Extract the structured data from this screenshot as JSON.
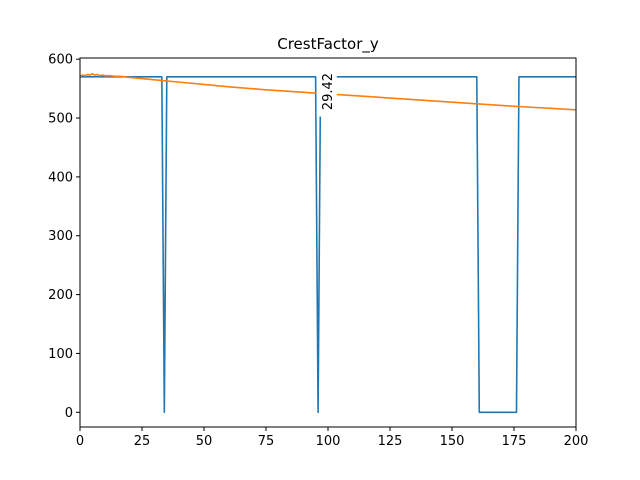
{
  "chart_data": {
    "type": "line",
    "title": "CrestFactor_y",
    "xlabel": "",
    "ylabel": "",
    "xlim": [
      0,
      200
    ],
    "ylim": [
      -25,
      602
    ],
    "xticks": [
      0,
      25,
      50,
      75,
      100,
      125,
      150,
      175,
      200
    ],
    "yticks": [
      0,
      100,
      200,
      300,
      400,
      500,
      600
    ],
    "grid": false,
    "legend": "none",
    "series": [
      {
        "color": "#1f77b4",
        "x": [
          0,
          33,
          34,
          35,
          95,
          96,
          97,
          160,
          161,
          176,
          177,
          200
        ],
        "y": [
          570,
          570,
          0,
          570,
          570,
          0,
          570,
          570,
          0,
          0,
          570,
          570
        ]
      },
      {
        "color": "#ff7f0e",
        "x": [
          0,
          1,
          2,
          3,
          4,
          5,
          6,
          7,
          8,
          9,
          10,
          12,
          14,
          16,
          18,
          20,
          25,
          30,
          40,
          50,
          60,
          75,
          100,
          125,
          150,
          175,
          200
        ],
        "y": [
          571,
          573,
          572,
          574,
          573,
          575,
          573,
          574,
          572,
          573,
          572,
          572,
          571,
          571,
          570,
          569,
          567,
          565,
          561,
          557,
          553,
          548,
          541,
          534,
          527,
          520,
          514
        ]
      }
    ],
    "annotations": [
      {
        "text": "29.42",
        "x": 99.5,
        "y": 545,
        "rotation": 90
      }
    ]
  }
}
